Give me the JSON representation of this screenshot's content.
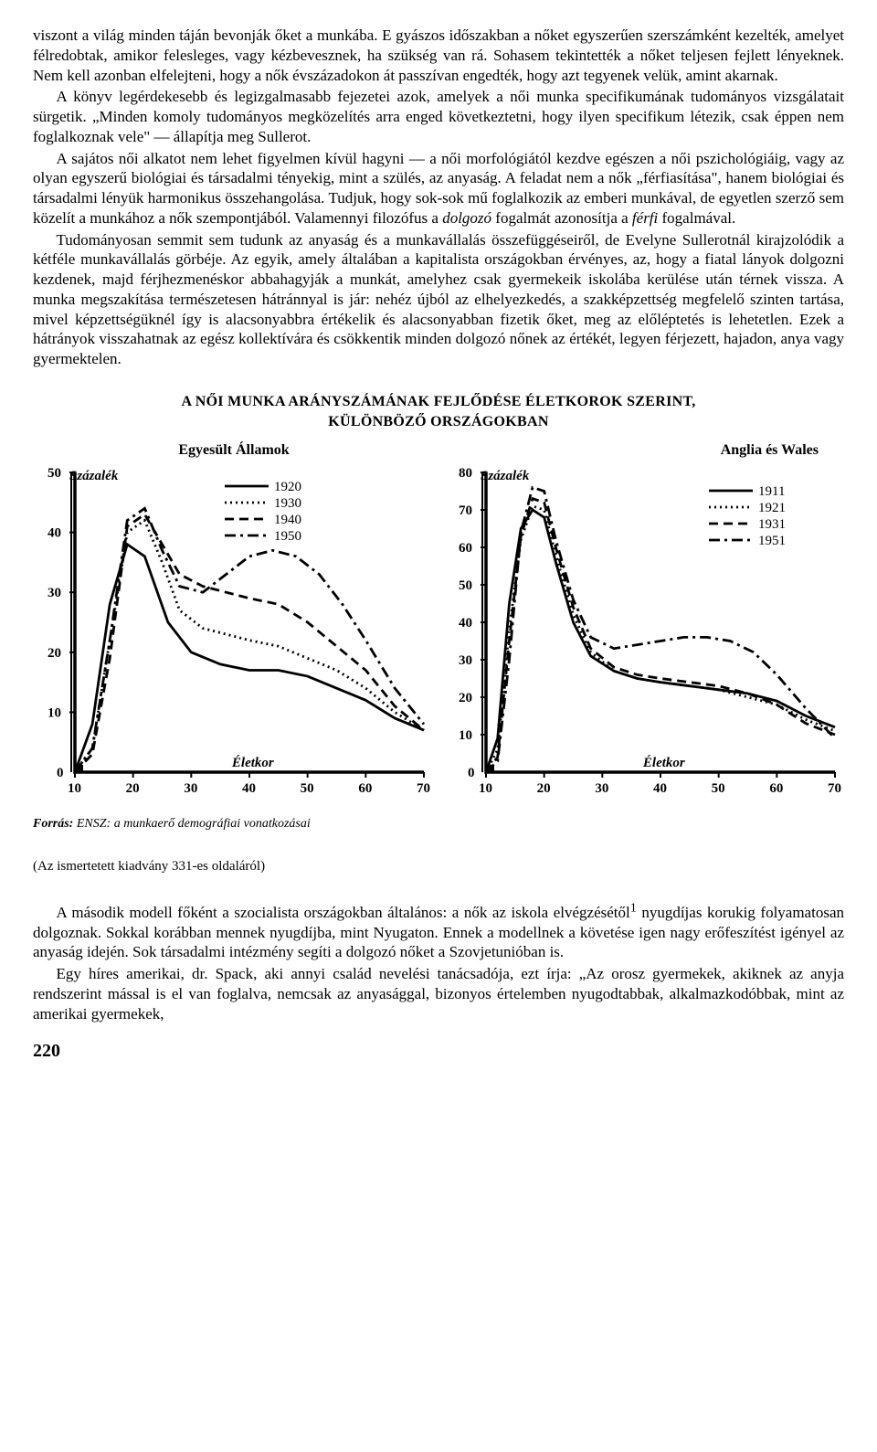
{
  "paragraphs": {
    "p1": "viszont a világ minden táján bevonják őket a munkába. E gyászos időszakban a nőket egyszerűen szerszámként kezelték, amelyet félredobtak, amikor felesleges, vagy kézbe­vesznek, ha szükség van rá. Sohasem tekintették a nőket teljesen fejlett lényeknek. Nem kell azonban elfelejteni, hogy a nők évszázadokon át passzívan engedték, hogy azt tegyenek velük, amint akarnak.",
    "p2": "A könyv legérdekesebb és legizgalmasabb fejezetei azok, amelyek a női munka speci­fikumának tudományos vizsgálatait sürgetik. „Minden komoly tudományos megközelítés arra enged következtetni, hogy ilyen specifikum létezik, csak éppen nem foglalkoznak vele\" — állapítja meg Sullerot.",
    "p3_a": "A sajátos női alkatot nem lehet figyelmen kívül hagyni — a női morfológiától kezdve egészen a női pszichológiáig, vagy az olyan egyszerű biológiai és társadalmi tényekig, mint a szülés, az anyaság. A feladat nem a nők „férfiasítása\", hanem biológiai és társadalmi lényük harmonikus összehangolása. Tudjuk, hogy sok-sok mű foglalkozik az emberi munkával, de egyetlen szerző sem közelít a munkához a nők szempontjából. Valamennyi filozófus a ",
    "p3_b": "dolgozó",
    "p3_c": " fogalmát azonosítja a ",
    "p3_d": "férfi",
    "p3_e": " fogalmával.",
    "p4": "Tudományosan semmit sem tudunk az anyaság és a munkavállalás összefüggéseiről, de Evelyne Sullerotnál kirajzolódik a kétféle munkavállalás görbéje. Az egyik, amely általában a kapitalista országokban érvényes, az, hogy a fiatal lányok dolgozni kezdenek, majd férjhez­menéskor abbahagyják a munkát, amelyhez csak gyermekeik iskolába kerülése után térnek vissza. A munka megszakítása természetesen hátránnyal is jár: nehéz újból az elhelyez­kedés, a szakképzettség megfelelő szinten tartása, mivel képzettségüknél így is alacsonyabbra értékelik és alacsonyabban fizetik őket, meg az előléptetés is lehetetlen. Ezek a hátrányok visszahatnak az egész kollektívára és csökkentik minden dolgozó nőnek az értékét, legyen férjezett, hajadon, anya vagy gyermektelen.",
    "p5": "A második modell főként a szocialista országokban általános: a nők az iskola elvégzésétől nyugdíjas korukig folyamatosan dolgoznak. Sokkal korábban mennek nyugdíjba, mint Nyugaton. Ennek a modellnek a követése igen nagy erőfeszítést igényel az anyaság idején. Sok társadalmi intézmény segíti a dolgozó nőket a Szovjetunióban is.",
    "p6": "Egy híres amerikai, dr. Spack, aki annyi család nevelési tanácsadója, ezt írja: „Az orosz gyermekek, akiknek az anyja rendszerint mással is el van foglalva, nemcsak az anyasággal, bizonyos értelemben nyugodtabbak, alkalmazkodóbbak, mint az amerikai gyermekek,"
  },
  "chart_title": "A NŐI MUNKA ARÁNYSZÁMÁNAK FEJLŐDÉSE ÉLETKOROK SZERINT,",
  "chart_subtitle": "KÜLÖNBÖZŐ ORSZÁGOKBAN",
  "chart_us": {
    "header": "Egyesült Államok",
    "ylabel": "Százalék",
    "xlabel": "Életkor",
    "xlim": [
      10,
      70
    ],
    "ylim": [
      0,
      50
    ],
    "xticks": [
      10,
      20,
      30,
      40,
      50,
      60,
      70
    ],
    "yticks": [
      0,
      10,
      20,
      30,
      40,
      50
    ],
    "legend": [
      {
        "label": "1920",
        "dash": "solid"
      },
      {
        "label": "1930",
        "dash": "dot"
      },
      {
        "label": "1940",
        "dash": "dash"
      },
      {
        "label": "1950",
        "dash": "dashdot"
      }
    ],
    "series": {
      "1920": [
        [
          10,
          0
        ],
        [
          13,
          8
        ],
        [
          16,
          28
        ],
        [
          19,
          38
        ],
        [
          22,
          36
        ],
        [
          26,
          25
        ],
        [
          30,
          20
        ],
        [
          35,
          18
        ],
        [
          40,
          17
        ],
        [
          45,
          17
        ],
        [
          50,
          16
        ],
        [
          55,
          14
        ],
        [
          60,
          12
        ],
        [
          65,
          9
        ],
        [
          70,
          7
        ]
      ],
      "1930": [
        [
          10,
          0
        ],
        [
          13,
          4
        ],
        [
          16,
          22
        ],
        [
          19,
          40
        ],
        [
          22,
          42
        ],
        [
          25,
          35
        ],
        [
          28,
          27
        ],
        [
          32,
          24
        ],
        [
          36,
          23
        ],
        [
          40,
          22
        ],
        [
          45,
          21
        ],
        [
          50,
          19
        ],
        [
          55,
          17
        ],
        [
          60,
          14
        ],
        [
          65,
          10
        ],
        [
          70,
          7
        ]
      ],
      "1940": [
        [
          10,
          0
        ],
        [
          13,
          3
        ],
        [
          16,
          19
        ],
        [
          19,
          41
        ],
        [
          22,
          43
        ],
        [
          25,
          38
        ],
        [
          28,
          33
        ],
        [
          32,
          31
        ],
        [
          36,
          30
        ],
        [
          40,
          29
        ],
        [
          45,
          28
        ],
        [
          50,
          25
        ],
        [
          55,
          21
        ],
        [
          60,
          17
        ],
        [
          65,
          11
        ],
        [
          70,
          7
        ]
      ],
      "1950": [
        [
          10,
          0
        ],
        [
          13,
          4
        ],
        [
          16,
          22
        ],
        [
          19,
          42
        ],
        [
          22,
          44
        ],
        [
          25,
          37
        ],
        [
          28,
          31
        ],
        [
          32,
          30
        ],
        [
          36,
          33
        ],
        [
          40,
          36
        ],
        [
          44,
          37
        ],
        [
          48,
          36
        ],
        [
          52,
          33
        ],
        [
          56,
          28
        ],
        [
          60,
          22
        ],
        [
          65,
          14
        ],
        [
          70,
          8
        ]
      ]
    },
    "stroke": "#000000",
    "background": "#ffffff"
  },
  "chart_uk": {
    "header": "Anglia és Wales",
    "ylabel": "Százalék",
    "xlabel": "Életkor",
    "xlim": [
      10,
      70
    ],
    "ylim": [
      0,
      80
    ],
    "xticks": [
      10,
      20,
      30,
      40,
      50,
      60,
      70
    ],
    "yticks": [
      0,
      10,
      20,
      30,
      40,
      50,
      60,
      70,
      80
    ],
    "legend": [
      {
        "label": "1911",
        "dash": "solid"
      },
      {
        "label": "1921",
        "dash": "dot"
      },
      {
        "label": "1931",
        "dash": "dash"
      },
      {
        "label": "1951",
        "dash": "dashdot"
      }
    ],
    "series": {
      "1911": [
        [
          10,
          0
        ],
        [
          12,
          9
        ],
        [
          14,
          45
        ],
        [
          16,
          65
        ],
        [
          18,
          70
        ],
        [
          20,
          68
        ],
        [
          22,
          56
        ],
        [
          25,
          40
        ],
        [
          28,
          31
        ],
        [
          32,
          27
        ],
        [
          36,
          25
        ],
        [
          40,
          24
        ],
        [
          45,
          23
        ],
        [
          50,
          22
        ],
        [
          55,
          21
        ],
        [
          60,
          19
        ],
        [
          65,
          15
        ],
        [
          70,
          12
        ]
      ],
      "1921": [
        [
          10,
          0
        ],
        [
          12,
          6
        ],
        [
          14,
          38
        ],
        [
          16,
          62
        ],
        [
          18,
          71
        ],
        [
          20,
          70
        ],
        [
          22,
          58
        ],
        [
          25,
          42
        ],
        [
          28,
          32
        ],
        [
          32,
          27
        ],
        [
          36,
          25
        ],
        [
          40,
          24
        ],
        [
          45,
          23
        ],
        [
          50,
          22
        ],
        [
          55,
          20
        ],
        [
          60,
          18
        ],
        [
          65,
          14
        ],
        [
          70,
          11
        ]
      ],
      "1931": [
        [
          10,
          0
        ],
        [
          12,
          4
        ],
        [
          14,
          35
        ],
        [
          16,
          63
        ],
        [
          18,
          73
        ],
        [
          20,
          72
        ],
        [
          22,
          60
        ],
        [
          25,
          44
        ],
        [
          28,
          33
        ],
        [
          32,
          28
        ],
        [
          36,
          26
        ],
        [
          40,
          25
        ],
        [
          45,
          24
        ],
        [
          50,
          23
        ],
        [
          55,
          21
        ],
        [
          60,
          18
        ],
        [
          65,
          13
        ],
        [
          70,
          10
        ]
      ],
      "1951": [
        [
          10,
          0
        ],
        [
          12,
          3
        ],
        [
          14,
          30
        ],
        [
          16,
          64
        ],
        [
          18,
          76
        ],
        [
          20,
          75
        ],
        [
          22,
          62
        ],
        [
          25,
          46
        ],
        [
          28,
          36
        ],
        [
          32,
          33
        ],
        [
          36,
          34
        ],
        [
          40,
          35
        ],
        [
          44,
          36
        ],
        [
          48,
          36
        ],
        [
          52,
          35
        ],
        [
          56,
          32
        ],
        [
          60,
          26
        ],
        [
          65,
          17
        ],
        [
          70,
          9
        ]
      ]
    },
    "stroke": "#000000",
    "background": "#ffffff"
  },
  "source_label": "Forrás:",
  "source_text": " ENSZ: a munkaerő demográfiai vonatkozásai",
  "caption": "(Az ismertetett kiadvány 331-es oldaláról)",
  "superscript": "1",
  "page_number": "220"
}
